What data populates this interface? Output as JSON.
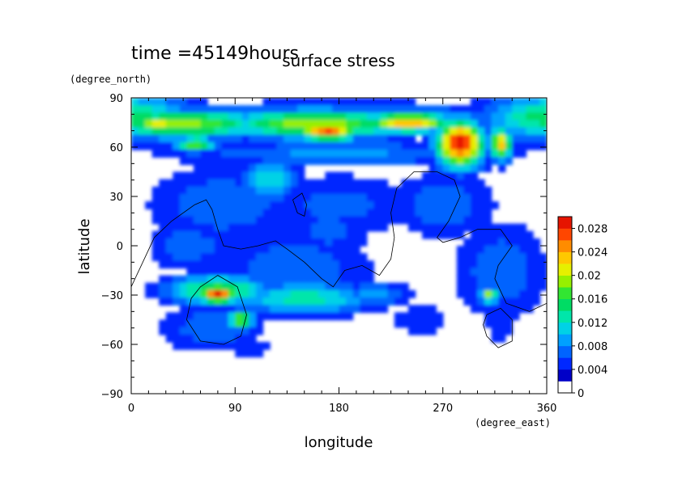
{
  "chart_data": {
    "type": "heatmap",
    "time_label": "time =45149hours",
    "title": "surface stress",
    "xlabel": "longitude",
    "ylabel": "latitude",
    "x_unit": "(degree_east)",
    "y_unit": "(degree_north)",
    "xlim": [
      0,
      360
    ],
    "ylim": [
      -90,
      90
    ],
    "x_ticks": [
      0,
      90,
      180,
      270,
      360
    ],
    "y_ticks": [
      90,
      60,
      30,
      0,
      -30,
      -60,
      -90
    ],
    "x_tick_labels": [
      "0",
      "90",
      "180",
      "270",
      "360"
    ],
    "y_tick_labels": [
      "90",
      "60",
      "30",
      "0",
      "−30",
      "−60",
      "−90"
    ],
    "colorbar": {
      "min": 0,
      "max": 0.03,
      "tick_values": [
        0,
        0.004,
        0.008,
        0.012,
        0.016,
        0.02,
        0.024,
        0.028
      ],
      "tick_labels": [
        "0",
        "0.004",
        "0.008",
        "0.012",
        "0.016",
        "0.02",
        "0.024",
        "0.028"
      ],
      "colors": [
        "#ffffff",
        "#0000c8",
        "#0028ff",
        "#0064ff",
        "#00a0ff",
        "#00d2e6",
        "#00e6aa",
        "#00dc64",
        "#32e632",
        "#96f000",
        "#e6f000",
        "#ffc800",
        "#ff8c00",
        "#ff4600",
        "#e61400"
      ]
    },
    "blobs": [
      {
        "lon": 0,
        "lat": 78,
        "rx": 55,
        "ry": 14,
        "v": 0.014
      },
      {
        "lon": 45,
        "lat": 74,
        "rx": 75,
        "ry": 9,
        "v": 0.018
      },
      {
        "lon": 25,
        "lat": 75,
        "rx": 22,
        "ry": 5,
        "v": 0.022
      },
      {
        "lon": 160,
        "lat": 74,
        "rx": 80,
        "ry": 9,
        "v": 0.019
      },
      {
        "lon": 170,
        "lat": 70,
        "rx": 28,
        "ry": 6,
        "v": 0.026
      },
      {
        "lon": 240,
        "lat": 75,
        "rx": 40,
        "ry": 6,
        "v": 0.024
      },
      {
        "lon": 285,
        "lat": 62,
        "rx": 20,
        "ry": 14,
        "v": 0.03
      },
      {
        "lon": 320,
        "lat": 62,
        "rx": 10,
        "ry": 10,
        "v": 0.022
      },
      {
        "lon": 55,
        "lat": 62,
        "rx": 18,
        "ry": 5,
        "v": 0.017
      },
      {
        "lon": 180,
        "lat": 84,
        "rx": 180,
        "ry": 4,
        "v": 0.006
      },
      {
        "lon": 180,
        "lat": 56,
        "rx": 150,
        "ry": 8,
        "v": 0.007
      },
      {
        "lon": 80,
        "lat": 25,
        "rx": 65,
        "ry": 24,
        "v": 0.006
      },
      {
        "lon": 180,
        "lat": 25,
        "rx": 70,
        "ry": 20,
        "v": 0.005
      },
      {
        "lon": 120,
        "lat": 40,
        "rx": 25,
        "ry": 12,
        "v": 0.011
      },
      {
        "lon": 170,
        "lat": 10,
        "rx": 40,
        "ry": 20,
        "v": 0.005
      },
      {
        "lon": 270,
        "lat": 25,
        "rx": 45,
        "ry": 20,
        "v": 0.006
      },
      {
        "lon": 50,
        "lat": 0,
        "rx": 35,
        "ry": 15,
        "v": 0.006
      },
      {
        "lon": 140,
        "lat": -15,
        "rx": 70,
        "ry": 25,
        "v": 0.006
      },
      {
        "lon": 75,
        "lat": -27,
        "rx": 45,
        "ry": 9,
        "v": 0.016
      },
      {
        "lon": 75,
        "lat": -30,
        "rx": 15,
        "ry": 5,
        "v": 0.03
      },
      {
        "lon": 95,
        "lat": -45,
        "rx": 12,
        "ry": 6,
        "v": 0.018
      },
      {
        "lon": 70,
        "lat": -50,
        "rx": 45,
        "ry": 15,
        "v": 0.006
      },
      {
        "lon": 150,
        "lat": -32,
        "rx": 60,
        "ry": 10,
        "v": 0.012
      },
      {
        "lon": 210,
        "lat": -30,
        "rx": 30,
        "ry": 8,
        "v": 0.008
      },
      {
        "lon": 320,
        "lat": -15,
        "rx": 40,
        "ry": 30,
        "v": 0.006
      },
      {
        "lon": 310,
        "lat": -30,
        "rx": 8,
        "ry": 5,
        "v": 0.018
      },
      {
        "lon": 320,
        "lat": -48,
        "rx": 15,
        "ry": 12,
        "v": 0.004
      },
      {
        "lon": 100,
        "lat": -62,
        "rx": 30,
        "ry": 5,
        "v": 0.004
      },
      {
        "lon": 250,
        "lat": -45,
        "rx": 30,
        "ry": 10,
        "v": 0.004
      }
    ],
    "contours": [
      [
        [
          0,
          -25
        ],
        [
          10,
          -10
        ],
        [
          20,
          5
        ],
        [
          35,
          15
        ],
        [
          55,
          25
        ],
        [
          65,
          28
        ],
        [
          70,
          22
        ],
        [
          75,
          10
        ],
        [
          80,
          0
        ],
        [
          95,
          -2
        ],
        [
          110,
          0
        ],
        [
          125,
          3
        ],
        [
          135,
          -2
        ],
        [
          150,
          -10
        ],
        [
          165,
          -20
        ],
        [
          175,
          -25
        ],
        [
          185,
          -15
        ],
        [
          200,
          -12
        ],
        [
          215,
          -18
        ],
        [
          225,
          -8
        ],
        [
          228,
          5
        ],
        [
          225,
          20
        ],
        [
          230,
          35
        ],
        [
          245,
          45
        ],
        [
          265,
          45
        ],
        [
          280,
          40
        ],
        [
          285,
          30
        ],
        [
          275,
          15
        ],
        [
          265,
          5
        ],
        [
          270,
          2
        ],
        [
          285,
          5
        ],
        [
          300,
          10
        ],
        [
          320,
          10
        ],
        [
          330,
          0
        ],
        [
          318,
          -12
        ],
        [
          315,
          -20
        ],
        [
          325,
          -35
        ],
        [
          345,
          -40
        ],
        [
          360,
          -35
        ]
      ],
      [
        [
          60,
          -25
        ],
        [
          75,
          -18
        ],
        [
          92,
          -25
        ],
        [
          100,
          -42
        ],
        [
          95,
          -55
        ],
        [
          80,
          -60
        ],
        [
          60,
          -58
        ],
        [
          48,
          -45
        ],
        [
          52,
          -32
        ],
        [
          60,
          -25
        ]
      ],
      [
        [
          308,
          -42
        ],
        [
          320,
          -38
        ],
        [
          330,
          -45
        ],
        [
          330,
          -58
        ],
        [
          318,
          -62
        ],
        [
          308,
          -55
        ],
        [
          305,
          -48
        ],
        [
          308,
          -42
        ]
      ],
      [
        [
          140,
          28
        ],
        [
          148,
          32
        ],
        [
          152,
          25
        ],
        [
          150,
          18
        ],
        [
          144,
          20
        ],
        [
          140,
          28
        ]
      ]
    ]
  }
}
